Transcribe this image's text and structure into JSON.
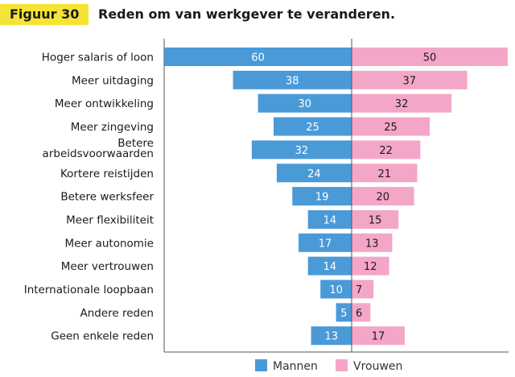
{
  "figure": {
    "label": "Figuur 30",
    "title": "Reden om van werkgever te veranderen."
  },
  "colors": {
    "mannen": "#4a9ad8",
    "vrouwen": "#f4a6c8",
    "axis": "#555555",
    "label_bg": "#f5e335"
  },
  "chart_data": {
    "type": "bar",
    "orientation": "horizontal-diverging",
    "categories": [
      "Hoger salaris of loon",
      "Meer uitdaging",
      "Meer ontwikkeling",
      "Meer zingeving",
      "Betere arbeidsvoorwaarden",
      "Kortere reistijden",
      "Betere werksfeer",
      "Meer flexibiliteit",
      "Meer autonomie",
      "Meer vertrouwen",
      "Internationale loopbaan",
      "Andere reden",
      "Geen enkele reden"
    ],
    "series": [
      {
        "name": "Mannen",
        "values": [
          60,
          38,
          30,
          25,
          32,
          24,
          19,
          14,
          17,
          14,
          10,
          5,
          13
        ]
      },
      {
        "name": "Vrouwen",
        "values": [
          50,
          37,
          32,
          25,
          22,
          21,
          20,
          15,
          13,
          12,
          7,
          6,
          17
        ]
      }
    ],
    "title": "Reden om van werkgever te veranderen.",
    "xlabel": "",
    "ylabel": "",
    "xlim": [
      -60,
      50
    ],
    "grid": false,
    "legend": "bottom-center"
  }
}
